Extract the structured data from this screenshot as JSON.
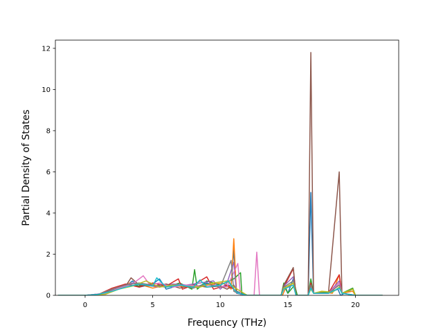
{
  "chart_data": {
    "type": "line",
    "title": "",
    "xlabel": "Frequency (THz)",
    "ylabel": "Partial Density of States",
    "xlim": [
      -2.2,
      23.2
    ],
    "ylim": [
      0,
      12.4
    ],
    "xticks": [
      0,
      5,
      10,
      15,
      20
    ],
    "yticks": [
      0,
      2,
      4,
      6,
      8,
      10,
      12
    ],
    "grid": false,
    "legend": "none",
    "series": [
      {
        "color": "#1f77b4",
        "points": [
          [
            -2,
            0
          ],
          [
            0,
            0
          ],
          [
            1,
            0.05
          ],
          [
            2,
            0.2
          ],
          [
            3,
            0.45
          ],
          [
            3.5,
            0.7
          ],
          [
            4,
            0.4
          ],
          [
            5,
            0.55
          ],
          [
            5.5,
            0.8
          ],
          [
            6,
            0.3
          ],
          [
            7,
            0.5
          ],
          [
            8,
            0.35
          ],
          [
            9,
            0.6
          ],
          [
            10,
            0.4
          ],
          [
            10.8,
            0.5
          ],
          [
            11,
            2.2
          ],
          [
            11.2,
            0.2
          ],
          [
            12,
            0
          ],
          [
            14.5,
            0
          ],
          [
            14.7,
            0.5
          ],
          [
            15,
            0.1
          ],
          [
            15.4,
            0.8
          ],
          [
            15.6,
            0
          ],
          [
            16.5,
            0
          ],
          [
            16.7,
            5.0
          ],
          [
            16.9,
            0.1
          ],
          [
            18,
            0.1
          ],
          [
            18.7,
            0.3
          ],
          [
            18.9,
            0
          ],
          [
            19.8,
            0.3
          ],
          [
            20,
            0
          ],
          [
            22,
            0
          ]
        ]
      },
      {
        "color": "#ff7f0e",
        "points": [
          [
            -2,
            0
          ],
          [
            0,
            0
          ],
          [
            1.2,
            0.05
          ],
          [
            2.5,
            0.3
          ],
          [
            3.3,
            0.6
          ],
          [
            4.2,
            0.5
          ],
          [
            5,
            0.35
          ],
          [
            6,
            0.5
          ],
          [
            7.5,
            0.4
          ],
          [
            9,
            0.5
          ],
          [
            10.2,
            0.6
          ],
          [
            10.8,
            0.3
          ],
          [
            11,
            2.75
          ],
          [
            11.2,
            0.1
          ],
          [
            12,
            0
          ],
          [
            14.6,
            0
          ],
          [
            14.8,
            0.3
          ],
          [
            15.4,
            0.6
          ],
          [
            15.6,
            0
          ],
          [
            16.5,
            0
          ],
          [
            16.7,
            0.4
          ],
          [
            16.9,
            0.1
          ],
          [
            17.5,
            0.15
          ],
          [
            18.3,
            0.1
          ],
          [
            18.8,
            1.0
          ],
          [
            19,
            0.1
          ],
          [
            19.8,
            0.2
          ],
          [
            20,
            0
          ],
          [
            22,
            0
          ]
        ]
      },
      {
        "color": "#2ca02c",
        "points": [
          [
            -2,
            0
          ],
          [
            0,
            0
          ],
          [
            1.5,
            0.1
          ],
          [
            2.2,
            0.3
          ],
          [
            3,
            0.5
          ],
          [
            4,
            0.45
          ],
          [
            5,
            0.5
          ],
          [
            6,
            0.4
          ],
          [
            7,
            0.6
          ],
          [
            7.9,
            0.3
          ],
          [
            8.1,
            1.25
          ],
          [
            8.3,
            0.3
          ],
          [
            9,
            0.7
          ],
          [
            10,
            0.5
          ],
          [
            11,
            0.8
          ],
          [
            11.5,
            1.1
          ],
          [
            11.6,
            0
          ],
          [
            12,
            0
          ],
          [
            14.5,
            0
          ],
          [
            14.7,
            0.6
          ],
          [
            15,
            0.1
          ],
          [
            15.5,
            0.5
          ],
          [
            15.7,
            0
          ],
          [
            16.5,
            0
          ],
          [
            16.7,
            0.8
          ],
          [
            16.9,
            0.1
          ],
          [
            18,
            0.15
          ],
          [
            18.8,
            0.5
          ],
          [
            19,
            0.1
          ],
          [
            19.8,
            0.35
          ],
          [
            20,
            0
          ],
          [
            22,
            0
          ]
        ]
      },
      {
        "color": "#d62728",
        "points": [
          [
            -2,
            0
          ],
          [
            0,
            0
          ],
          [
            1,
            0.05
          ],
          [
            2,
            0.35
          ],
          [
            3,
            0.55
          ],
          [
            4,
            0.4
          ],
          [
            5,
            0.6
          ],
          [
            6,
            0.45
          ],
          [
            6.9,
            0.8
          ],
          [
            7.2,
            0.3
          ],
          [
            8,
            0.5
          ],
          [
            9,
            0.9
          ],
          [
            9.5,
            0.3
          ],
          [
            10.5,
            0.5
          ],
          [
            11,
            0.3
          ],
          [
            11.3,
            0.1
          ],
          [
            12,
            0
          ],
          [
            14.5,
            0
          ],
          [
            14.7,
            0.4
          ],
          [
            15.4,
            1.3
          ],
          [
            15.6,
            0
          ],
          [
            16.5,
            0
          ],
          [
            16.7,
            0.6
          ],
          [
            16.9,
            0.1
          ],
          [
            18,
            0.1
          ],
          [
            18.8,
            1.0
          ],
          [
            19,
            0.1
          ],
          [
            20,
            0
          ],
          [
            22,
            0
          ]
        ]
      },
      {
        "color": "#9467bd",
        "points": [
          [
            -2,
            0
          ],
          [
            0,
            0
          ],
          [
            1.5,
            0.1
          ],
          [
            2.5,
            0.4
          ],
          [
            3.5,
            0.6
          ],
          [
            4.5,
            0.5
          ],
          [
            5.5,
            0.4
          ],
          [
            6.5,
            0.55
          ],
          [
            7.5,
            0.5
          ],
          [
            8.5,
            0.6
          ],
          [
            9.5,
            0.7
          ],
          [
            10,
            0.3
          ],
          [
            10.5,
            0.6
          ],
          [
            11,
            1.6
          ],
          [
            11.2,
            0.1
          ],
          [
            12,
            0
          ],
          [
            14.5,
            0
          ],
          [
            14.7,
            0.45
          ],
          [
            15.4,
            0.9
          ],
          [
            15.6,
            0
          ],
          [
            16.5,
            0
          ],
          [
            16.7,
            0.5
          ],
          [
            16.9,
            0.1
          ],
          [
            18,
            0.1
          ],
          [
            18.8,
            0.7
          ],
          [
            19,
            0.1
          ],
          [
            20,
            0
          ],
          [
            22,
            0
          ]
        ]
      },
      {
        "color": "#8c564b",
        "points": [
          [
            -2,
            0
          ],
          [
            0,
            0
          ],
          [
            1,
            0.05
          ],
          [
            2,
            0.25
          ],
          [
            3,
            0.45
          ],
          [
            3.4,
            0.85
          ],
          [
            4,
            0.5
          ],
          [
            5,
            0.45
          ],
          [
            6,
            0.55
          ],
          [
            7,
            0.35
          ],
          [
            8,
            0.5
          ],
          [
            9,
            0.4
          ],
          [
            10,
            0.45
          ],
          [
            10.5,
            0.3
          ],
          [
            11,
            0.5
          ],
          [
            11.3,
            0.1
          ],
          [
            12,
            0
          ],
          [
            14.5,
            0
          ],
          [
            14.7,
            0.5
          ],
          [
            15.4,
            1.35
          ],
          [
            15.6,
            0
          ],
          [
            16.5,
            0
          ],
          [
            16.7,
            11.8
          ],
          [
            16.9,
            0.1
          ],
          [
            18,
            0.1
          ],
          [
            18.8,
            6.0
          ],
          [
            19,
            0.1
          ],
          [
            20,
            0
          ],
          [
            22,
            0
          ]
        ]
      },
      {
        "color": "#e377c2",
        "points": [
          [
            -2,
            0
          ],
          [
            0,
            0
          ],
          [
            1.5,
            0.1
          ],
          [
            2.5,
            0.35
          ],
          [
            3.5,
            0.55
          ],
          [
            4.3,
            0.95
          ],
          [
            4.8,
            0.5
          ],
          [
            5.5,
            0.6
          ],
          [
            6.5,
            0.4
          ],
          [
            7.5,
            0.5
          ],
          [
            8.5,
            0.45
          ],
          [
            9.5,
            0.5
          ],
          [
            10.5,
            0.4
          ],
          [
            11.3,
            1.55
          ],
          [
            11.5,
            0
          ],
          [
            12.5,
            0
          ],
          [
            12.7,
            2.1
          ],
          [
            12.9,
            0
          ],
          [
            14.5,
            0
          ],
          [
            14.7,
            0.3
          ],
          [
            15.4,
            0.5
          ],
          [
            15.6,
            0
          ],
          [
            16.5,
            0
          ],
          [
            16.7,
            0.4
          ],
          [
            16.9,
            0.1
          ],
          [
            18,
            0.1
          ],
          [
            18.8,
            0.6
          ],
          [
            19,
            0.1
          ],
          [
            20,
            0
          ],
          [
            22,
            0
          ]
        ]
      },
      {
        "color": "#7f7f7f",
        "points": [
          [
            -2,
            0
          ],
          [
            0,
            0
          ],
          [
            1,
            0.05
          ],
          [
            2,
            0.3
          ],
          [
            3,
            0.5
          ],
          [
            4,
            0.6
          ],
          [
            5,
            0.5
          ],
          [
            6,
            0.4
          ],
          [
            7,
            0.5
          ],
          [
            8,
            0.35
          ],
          [
            9,
            0.55
          ],
          [
            10,
            0.4
          ],
          [
            10.8,
            1.7
          ],
          [
            11,
            0.2
          ],
          [
            11.3,
            0.1
          ],
          [
            12,
            0
          ],
          [
            14.5,
            0
          ],
          [
            14.7,
            0.4
          ],
          [
            15.4,
            0.7
          ],
          [
            15.6,
            0
          ],
          [
            16.5,
            0
          ],
          [
            16.7,
            0.5
          ],
          [
            16.9,
            0.1
          ],
          [
            18,
            0.1
          ],
          [
            18.8,
            0.5
          ],
          [
            19,
            0.1
          ],
          [
            20,
            0
          ],
          [
            22,
            0
          ]
        ]
      },
      {
        "color": "#bcbd22",
        "points": [
          [
            -2,
            0
          ],
          [
            0,
            0
          ],
          [
            1.5,
            0.05
          ],
          [
            2.5,
            0.3
          ],
          [
            3.5,
            0.45
          ],
          [
            4.5,
            0.7
          ],
          [
            5.5,
            0.4
          ],
          [
            6.5,
            0.5
          ],
          [
            7.5,
            0.45
          ],
          [
            8.5,
            0.4
          ],
          [
            9.5,
            0.6
          ],
          [
            10.5,
            0.7
          ],
          [
            11,
            0.4
          ],
          [
            11.5,
            0.2
          ],
          [
            12,
            0
          ],
          [
            14.5,
            0
          ],
          [
            14.7,
            0.35
          ],
          [
            15.4,
            0.6
          ],
          [
            15.6,
            0
          ],
          [
            16.5,
            0
          ],
          [
            16.7,
            0.3
          ],
          [
            16.9,
            0.1
          ],
          [
            17.5,
            0.2
          ],
          [
            18.3,
            0.15
          ],
          [
            18.8,
            0.4
          ],
          [
            19,
            0.1
          ],
          [
            19.8,
            0.3
          ],
          [
            20,
            0
          ],
          [
            22,
            0
          ]
        ]
      },
      {
        "color": "#17becf",
        "points": [
          [
            -2,
            0
          ],
          [
            0,
            0
          ],
          [
            1,
            0.05
          ],
          [
            2,
            0.2
          ],
          [
            3,
            0.4
          ],
          [
            4,
            0.55
          ],
          [
            5,
            0.45
          ],
          [
            5.3,
            0.85
          ],
          [
            6,
            0.4
          ],
          [
            7,
            0.5
          ],
          [
            8,
            0.4
          ],
          [
            8.5,
            0.75
          ],
          [
            9,
            0.4
          ],
          [
            10,
            0.5
          ],
          [
            10.6,
            0.7
          ],
          [
            11,
            0.3
          ],
          [
            11.3,
            0.1
          ],
          [
            12,
            0
          ],
          [
            14.5,
            0
          ],
          [
            14.7,
            0.3
          ],
          [
            15.4,
            0.5
          ],
          [
            15.6,
            0
          ],
          [
            16.5,
            0
          ],
          [
            16.7,
            0.35
          ],
          [
            16.9,
            0.1
          ],
          [
            18,
            0.1
          ],
          [
            18.8,
            0.35
          ],
          [
            19,
            0.1
          ],
          [
            20,
            0
          ],
          [
            22,
            0
          ]
        ]
      }
    ]
  }
}
